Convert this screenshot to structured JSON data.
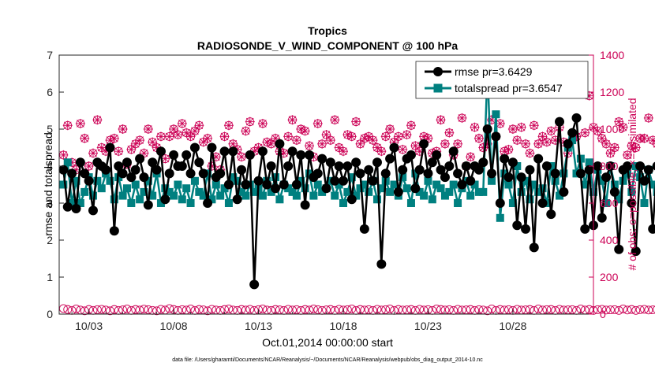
{
  "chart_data": {
    "type": "line",
    "title": "Tropics",
    "subtitle": "RADIOSONDE_V_WIND_COMPONENT @ 100 hPa",
    "xlabel": "Oct.01,2014 00:00:00 start",
    "ylabel_left": "rmse and totalspread",
    "ylabel_right": "# of obs: o=possible; ×=assimilated",
    "footnote": "data file: /Users/gharamti/Documents/NCAR/Reanalysis/~/Documents/NCAR/Reanalysis/webpub/obs_diag_output_2014-10.nc",
    "x_ticks": [
      "10/03",
      "10/08",
      "10/13",
      "10/18",
      "10/23",
      "10/28"
    ],
    "x_tick_days": [
      3,
      8,
      13,
      18,
      23,
      28
    ],
    "xlim_days": [
      1.25,
      32.75
    ],
    "ylim_left": [
      0,
      7
    ],
    "yticks_left": [
      "0",
      "1",
      "2",
      "3",
      "4",
      "5",
      "6",
      "7"
    ],
    "ylim_right": [
      0,
      1400
    ],
    "yticks_right": [
      "0",
      "200",
      "400",
      "600",
      "800",
      "1000",
      "1200",
      "1400"
    ],
    "grid": false,
    "legend_position": "top-right",
    "colors": {
      "rmse": "#000000",
      "totalspread": "#008080",
      "obs": "#cc0055"
    },
    "series": [
      {
        "name": "rmse",
        "legend": "rmse pr=3.6429",
        "axis": "left",
        "values": [
          3.9,
          2.9,
          3.8,
          2.85,
          4.1,
          3.8,
          3.6,
          2.8,
          4.1,
          4.0,
          3.9,
          4.5,
          2.25,
          4.0,
          3.8,
          4.1,
          3.7,
          3.9,
          4.2,
          3.7,
          2.95,
          4.1,
          3.9,
          4.4,
          3.1,
          3.8,
          4.3,
          4.0,
          4.0,
          4.3,
          3.8,
          4.5,
          4.1,
          3.8,
          3.0,
          4.5,
          3.7,
          3.8,
          4.4,
          3.5,
          4.4,
          3.1,
          3.9,
          3.5,
          4.3,
          0.8,
          3.6,
          4.4,
          3.5,
          4.0,
          3.4,
          4.6,
          3.5,
          4.0,
          4.4,
          3.5,
          4.3,
          2.95,
          4.3,
          3.7,
          3.8,
          4.2,
          3.4,
          4.1,
          3.6,
          4.0,
          3.6,
          4.0,
          3.1,
          4.1,
          3.8,
          2.3,
          3.9,
          3.6,
          4.1,
          1.35,
          3.8,
          4.2,
          4.5,
          3.3,
          3.9,
          4.2,
          4.3,
          3.4,
          3.9,
          4.6,
          3.8,
          4.1,
          4.3,
          3.9,
          3.7,
          4.0,
          4.4,
          3.8,
          3.5,
          4.0,
          3.6,
          4.0,
          3.9,
          4.1,
          5.0,
          3.8,
          4.8,
          3.0,
          4.2,
          3.7,
          4.1,
          2.4,
          3.7,
          2.3,
          3.9,
          1.8,
          4.2,
          3.0,
          4.0,
          2.7,
          3.8,
          5.2,
          3.3,
          4.6,
          4.9,
          5.3,
          3.8,
          2.3,
          3.9,
          2.4,
          4.0,
          2.6,
          3.7,
          4.0,
          3.3,
          1.75,
          3.9,
          4.0,
          3.0,
          1.7,
          4.0,
          3.6,
          3.9,
          2.3,
          4.0,
          3.7,
          2.4,
          4.0,
          3.9,
          3.0,
          2.1,
          3.5,
          4.0,
          3.2,
          1.85,
          3.6
        ]
      },
      {
        "name": "totalspread",
        "legend": "totalspread pr=3.6547",
        "axis": "left",
        "values": [
          3.5,
          4.1,
          3.0,
          3.6,
          3.0,
          3.3,
          3.7,
          3.2,
          3.6,
          3.4,
          3.8,
          3.6,
          3.1,
          3.7,
          3.2,
          3.4,
          3.0,
          3.5,
          3.1,
          3.3,
          3.6,
          3.2,
          3.8,
          3.0,
          3.4,
          3.3,
          3.2,
          3.5,
          3.1,
          3.4,
          3.0,
          3.6,
          3.3,
          3.2,
          3.8,
          3.1,
          3.5,
          3.2,
          3.4,
          3.0,
          3.7,
          3.6,
          3.3,
          3.2,
          3.5,
          3.3,
          3.4,
          3.2,
          3.6,
          3.3,
          3.7,
          3.1,
          3.5,
          3.4,
          3.3,
          3.2,
          3.6,
          3.4,
          3.8,
          3.2,
          3.5,
          3.3,
          3.4,
          3.6,
          3.2,
          3.5,
          3.0,
          3.3,
          3.7,
          3.2,
          3.4,
          3.5,
          3.3,
          3.6,
          3.1,
          3.4,
          3.6,
          3.3,
          3.5,
          3.2,
          3.7,
          3.4,
          3.0,
          3.8,
          3.3,
          3.2,
          3.6,
          3.1,
          3.5,
          3.4,
          3.2,
          3.3,
          3.5,
          3.0,
          3.4,
          3.6,
          3.2,
          3.5,
          3.3,
          3.3,
          6.6,
          3.6,
          5.4,
          2.6,
          3.8,
          3.5,
          3.0,
          4.0,
          3.3,
          3.6,
          3.1,
          3.5,
          3.3,
          3.4,
          3.0,
          4.0,
          3.6,
          3.2,
          3.8,
          4.5,
          4.7,
          3.8,
          4.2,
          3.5,
          4.1,
          3.3,
          3.9,
          3.6,
          3.0,
          4.0,
          3.5,
          3.1,
          3.6,
          3.8,
          3.3,
          4.0,
          3.7,
          3.0,
          3.9,
          3.5,
          3.3,
          3.9,
          3.6,
          3.3,
          3.8,
          3.0,
          3.7,
          3.2,
          3.9,
          3.6,
          2.55,
          3.5
        ]
      },
      {
        "name": "obs possible",
        "legend": "",
        "axis": "right",
        "marker": "circle",
        "values": [
          30,
          25,
          20,
          28,
          22,
          18,
          25,
          20,
          24,
          26,
          22,
          18,
          25,
          20,
          23,
          28,
          20,
          25,
          22,
          27,
          24,
          20,
          18,
          26,
          22,
          30,
          25,
          20,
          24,
          22,
          28,
          20,
          25,
          23,
          18,
          26,
          22,
          20,
          25,
          28,
          22,
          20,
          25,
          22,
          26,
          20,
          24,
          28,
          22,
          20,
          25,
          23,
          20,
          26,
          22,
          24,
          20,
          25,
          22,
          28,
          24,
          20,
          23,
          25,
          20,
          26,
          22,
          24,
          28,
          20,
          25,
          22,
          24,
          20,
          26,
          22,
          24,
          28,
          20,
          25,
          22,
          23,
          25,
          20,
          26,
          22,
          24,
          20,
          28,
          25,
          22,
          24,
          20,
          26,
          22,
          23,
          25,
          20,
          24,
          22,
          18,
          28,
          20,
          25,
          22,
          24,
          20,
          26,
          22,
          23,
          25,
          20,
          28,
          22,
          24,
          25,
          20,
          26,
          22,
          23,
          24,
          20,
          28,
          22,
          25,
          20,
          24,
          26,
          22,
          23,
          24,
          20,
          28,
          22,
          25,
          20,
          24,
          26,
          22,
          23,
          25,
          20,
          24,
          28,
          22,
          10,
          5,
          3
        ]
      },
      {
        "name": "obs assimilated",
        "legend": "",
        "axis": "right",
        "marker": "x",
        "values": [
          860,
          1020,
          820,
          780,
          1030,
          950,
          800,
          870,
          1050,
          900,
          880,
          940,
          950,
          880,
          1000,
          810,
          890,
          920,
          940,
          870,
          1000,
          930,
          900,
          960,
          840,
          960,
          1000,
          970,
          1030,
          980,
          960,
          990,
          1020,
          930,
          950,
          800,
          850,
          780,
          960,
          1020,
          920,
          890,
          850,
          990,
          1040,
          880,
          900,
          1030,
          930,
          920,
          950,
          880,
          870,
          960,
          1050,
          940,
          1000,
          990,
          910,
          850,
          1030,
          920,
          970,
          940,
          1050,
          900,
          880,
          970,
          960,
          1040,
          920,
          950,
          960,
          940,
          900,
          880,
          960,
          1000,
          930,
          960,
          890,
          970,
          1020,
          910,
          880,
          960,
          950,
          870,
          880,
          1050,
          920,
          980,
          860,
          920,
          1060,
          800,
          850,
          1010,
          950,
          900,
          920,
          1050,
          960,
          1030,
          880,
          890,
          1000,
          940,
          1010,
          920,
          870,
          1020,
          920,
          960,
          930,
          990,
          940,
          1010,
          930,
          870,
          940,
          960,
          1220,
          980,
          1180,
          1010,
          990,
          950,
          920,
          870,
          900,
          1040,
          1010,
          860,
          910,
          900,
          950,
          950,
          1060,
          940,
          920,
          1000,
          820,
          1050,
          950,
          900,
          980,
          930,
          1070,
          1030,
          820,
          1070
        ]
      }
    ]
  }
}
